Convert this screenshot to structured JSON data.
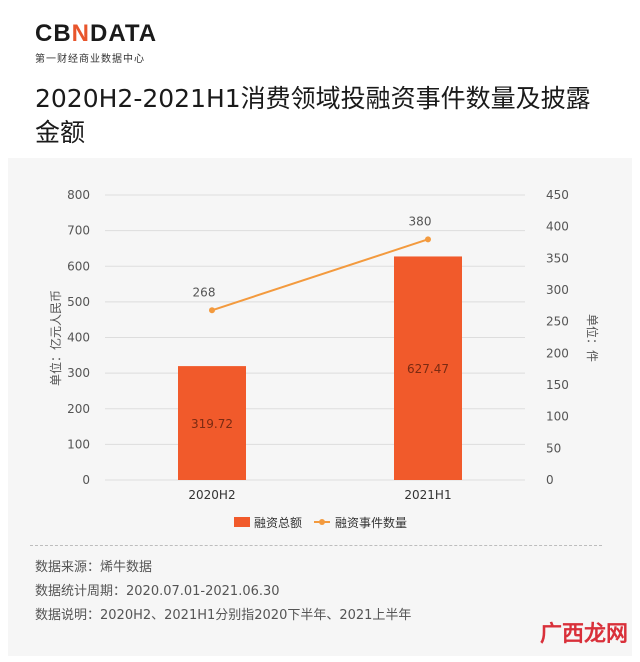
{
  "header": {
    "logo_prefix": "CB",
    "logo_mid": "N",
    "logo_suffix": "DATA",
    "subtitle": "第一财经商业数据中心"
  },
  "title": "2020H2-2021H1消费领域投融资事件数量及披露金额",
  "colors": {
    "bar": "#f15a2b",
    "line": "#f39a3e",
    "grid": "#dddddd",
    "text": "#555555"
  },
  "chart_data": {
    "type": "bar",
    "categories": [
      "2020H2",
      "2021H1"
    ],
    "series": [
      {
        "name": "融资总额",
        "type": "bar",
        "axis": "left",
        "values": [
          319.72,
          627.47
        ]
      },
      {
        "name": "融资事件数量",
        "type": "line",
        "axis": "right",
        "values": [
          268,
          380
        ]
      }
    ],
    "ylabel_left": "单位：亿元人民币",
    "ylabel_right": "单位：件",
    "ylim_left": [
      0,
      800
    ],
    "ylim_right": [
      0,
      450
    ],
    "yticks_left": [
      "0",
      "100",
      "200",
      "300",
      "400",
      "500",
      "600",
      "700",
      "800"
    ],
    "yticks_right": [
      "0",
      "50",
      "100",
      "150",
      "200",
      "250",
      "300",
      "350",
      "400",
      "450"
    ],
    "bar_labels": [
      "319.72",
      "627.47"
    ],
    "line_labels": [
      "268",
      "380"
    ],
    "legend_position": "bottom",
    "grid": true
  },
  "notes": {
    "source": "数据来源：烯牛数据",
    "period": "数据统计周期：2020.07.01-2021.06.30",
    "explain": "数据说明：2020H2、2021H1分别指2020下半年、2021上半年"
  },
  "watermark_brand": "广西龙网"
}
